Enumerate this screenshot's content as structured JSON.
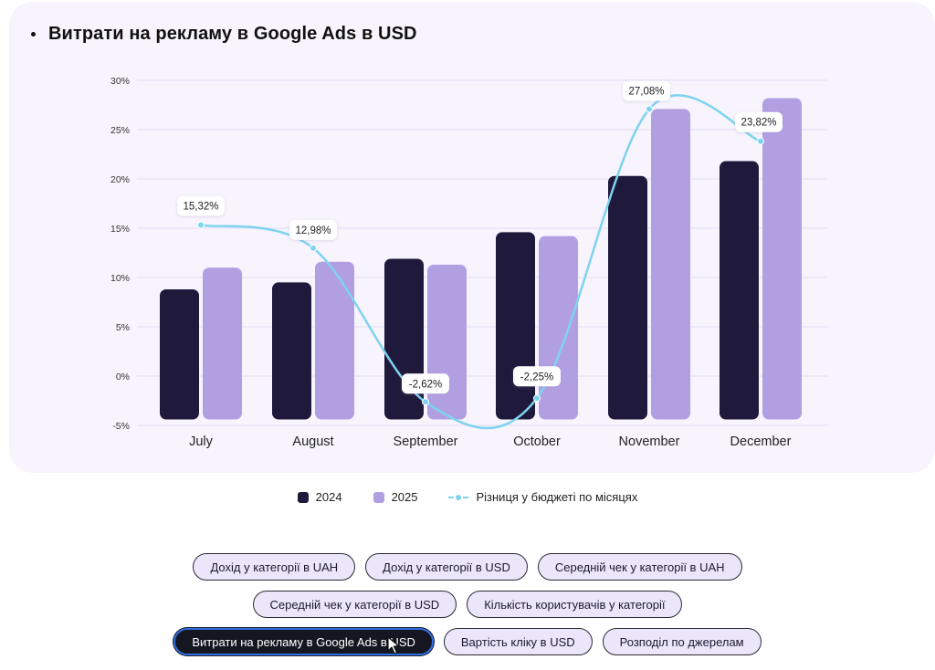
{
  "header": {
    "title": "Витрати на рекламу в Google Ads в USD"
  },
  "chart_data": {
    "type": "bar",
    "title": "Витрати на рекламу в Google Ads в USD",
    "xlabel": "",
    "ylabel": "",
    "categories": [
      "July",
      "August",
      "September",
      "October",
      "November",
      "December"
    ],
    "yticks": [
      "30%",
      "25%",
      "20%",
      "15%",
      "10%",
      "5%",
      "0%",
      "-5%"
    ],
    "ylim": [
      -5,
      30
    ],
    "bar_baseline": -4.4,
    "grid": true,
    "series": [
      {
        "name": "2024",
        "type": "bar",
        "color": "#1f1a3b",
        "values": [
          8.8,
          9.5,
          11.9,
          14.6,
          20.3,
          21.8
        ]
      },
      {
        "name": "2025",
        "type": "bar",
        "color": "#b29fe2",
        "values": [
          11.0,
          11.6,
          11.3,
          14.2,
          27.1,
          28.2
        ]
      },
      {
        "name": "Різниця у бюджеті по місяцях",
        "type": "line",
        "color": "#7dd3f0",
        "values": [
          15.32,
          12.98,
          -2.62,
          -2.25,
          27.08,
          23.82
        ],
        "labels": [
          "15,32%",
          "12,98%",
          "-2,62%",
          "-2,25%",
          "27,08%",
          "23,82%"
        ]
      }
    ],
    "legend_position": "bottom-center"
  },
  "legend": [
    {
      "label": "2024",
      "color": "#1f1a3b"
    },
    {
      "label": "2025",
      "color": "#b29fe2"
    },
    {
      "label": "Різниця у бюджеті по місяцях",
      "color": "#7dd3f0"
    }
  ],
  "buttons": {
    "rows": [
      [
        {
          "label": "Дохід у категорії в UAH",
          "active": false
        },
        {
          "label": "Дохід у категорії в USD",
          "active": false
        },
        {
          "label": "Середній чек у категорії в UAH",
          "active": false
        }
      ],
      [
        {
          "label": "Середній чек у категорії в USD",
          "active": false
        },
        {
          "label": "Кількість користувачів у категорії",
          "active": false
        }
      ],
      [
        {
          "label": "Витрати на рекламу в Google Ads в USD",
          "active": true
        },
        {
          "label": "Вартість кліку в USD",
          "active": false
        },
        {
          "label": "Розподіл по джерелам",
          "active": false
        }
      ]
    ]
  }
}
